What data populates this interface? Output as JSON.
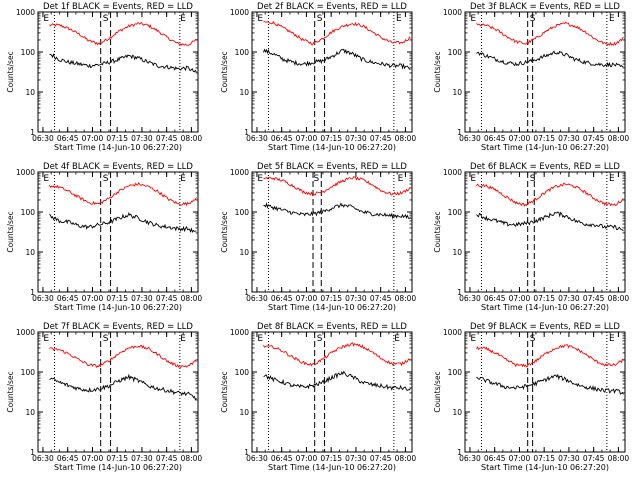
{
  "figure": {
    "tick_labels_x": [
      "06:30",
      "06:45",
      "07:00",
      "07:15",
      "07:30",
      "07:45",
      "08:00"
    ],
    "tick_labels_y": [
      "1",
      "10",
      "100",
      "1000"
    ]
  },
  "chart_data": [
    {
      "type": "line",
      "title": "Det 1f BLACK = Events, RED = LLD",
      "xlabel": "Start Time (14-Jun-10 06:27:20)",
      "ylabel": "Counts/sec",
      "xlim": [
        "06:27",
        "08:04"
      ],
      "ylim": [
        1,
        1000
      ],
      "yscale": "log",
      "annotations": [
        {
          "text": "E",
          "x": "06:32"
        },
        {
          "text": "S",
          "x": "07:08"
        },
        {
          "text": "E",
          "x": "07:55"
        }
      ],
      "dashed_lines": [
        "07:05",
        "07:11"
      ],
      "dotted_lines": [
        "06:37",
        "07:53"
      ],
      "series": [
        {
          "color": "#ff0000",
          "x": [
            "06:34",
            "06:40",
            "06:46",
            "06:52",
            "06:58",
            "07:04",
            "07:10",
            "07:16",
            "07:22",
            "07:28",
            "07:34",
            "07:40",
            "07:46",
            "07:52",
            "07:58",
            "08:03"
          ],
          "values": [
            470,
            470,
            380,
            280,
            190,
            160,
            220,
            330,
            440,
            520,
            460,
            330,
            220,
            160,
            150,
            200
          ]
        },
        {
          "color": "#000000",
          "x": [
            "06:34",
            "06:40",
            "06:46",
            "06:52",
            "06:58",
            "07:04",
            "07:10",
            "07:16",
            "07:22",
            "07:28",
            "07:34",
            "07:40",
            "07:46",
            "07:52",
            "07:58",
            "08:03"
          ],
          "values": [
            90,
            65,
            55,
            50,
            45,
            48,
            55,
            65,
            80,
            70,
            55,
            45,
            42,
            38,
            40,
            30
          ]
        }
      ]
    },
    {
      "type": "line",
      "title": "Det 2f BLACK = Events, RED = LLD",
      "xlabel": "Start Time (14-Jun-10 06:27:20)",
      "ylabel": "Counts/sec",
      "xlim": [
        "06:27",
        "08:04"
      ],
      "ylim": [
        1,
        1000
      ],
      "yscale": "log",
      "annotations": [
        {
          "text": "E",
          "x": "06:32"
        },
        {
          "text": "S",
          "x": "07:08"
        },
        {
          "text": "E",
          "x": "07:56"
        }
      ],
      "dashed_lines": [
        "07:05",
        "07:11"
      ],
      "dotted_lines": [
        "06:37",
        "07:53"
      ],
      "series": [
        {
          "color": "#ff0000",
          "x": [
            "06:34",
            "06:40",
            "06:46",
            "06:52",
            "06:58",
            "07:04",
            "07:10",
            "07:16",
            "07:22",
            "07:28",
            "07:34",
            "07:40",
            "07:46",
            "07:52",
            "07:58",
            "08:03"
          ],
          "values": [
            560,
            540,
            400,
            290,
            200,
            160,
            220,
            330,
            440,
            520,
            450,
            320,
            220,
            170,
            170,
            230
          ]
        },
        {
          "color": "#000000",
          "x": [
            "06:34",
            "06:40",
            "06:46",
            "06:52",
            "06:58",
            "07:04",
            "07:10",
            "07:16",
            "07:22",
            "07:28",
            "07:34",
            "07:40",
            "07:46",
            "07:52",
            "07:58",
            "08:03"
          ],
          "values": [
            110,
            90,
            65,
            55,
            50,
            55,
            60,
            80,
            110,
            90,
            65,
            55,
            50,
            45,
            45,
            38
          ]
        }
      ]
    },
    {
      "type": "line",
      "title": "Det 3f BLACK = Events, RED = LLD",
      "xlabel": "Start Time (14-Jun-10 06:27:20)",
      "ylabel": "Counts/sec",
      "xlim": [
        "06:27",
        "08:04"
      ],
      "ylim": [
        1,
        1000
      ],
      "yscale": "log",
      "annotations": [
        {
          "text": "E",
          "x": "06:32"
        },
        {
          "text": "S",
          "x": "07:08"
        },
        {
          "text": "E",
          "x": "07:56"
        }
      ],
      "dashed_lines": [
        "07:05",
        "07:08"
      ],
      "dotted_lines": [
        "06:37",
        "07:53"
      ],
      "series": [
        {
          "color": "#ff0000",
          "x": [
            "06:34",
            "06:40",
            "06:46",
            "06:52",
            "06:58",
            "07:04",
            "07:10",
            "07:16",
            "07:22",
            "07:28",
            "07:34",
            "07:40",
            "07:46",
            "07:52",
            "07:58",
            "08:03"
          ],
          "values": [
            480,
            460,
            360,
            250,
            180,
            160,
            220,
            330,
            450,
            520,
            440,
            320,
            210,
            160,
            160,
            220
          ]
        },
        {
          "color": "#000000",
          "x": [
            "06:34",
            "06:40",
            "06:46",
            "06:52",
            "06:58",
            "07:04",
            "07:10",
            "07:16",
            "07:22",
            "07:28",
            "07:34",
            "07:40",
            "07:46",
            "07:52",
            "07:58",
            "08:03"
          ],
          "values": [
            100,
            80,
            65,
            55,
            50,
            55,
            65,
            80,
            100,
            85,
            65,
            55,
            50,
            48,
            48,
            40
          ]
        }
      ]
    },
    {
      "type": "line",
      "title": "Det 4f BLACK = Events, RED = LLD",
      "xlabel": "Start Time (14-Jun-10 06:27:20)",
      "ylabel": "Counts/sec",
      "xlim": [
        "06:27",
        "08:04"
      ],
      "ylim": [
        1,
        1000
      ],
      "yscale": "log",
      "annotations": [
        {
          "text": "E",
          "x": "06:32"
        },
        {
          "text": "S",
          "x": "07:08"
        },
        {
          "text": "E",
          "x": "07:55"
        }
      ],
      "dashed_lines": [
        "07:05",
        "07:11"
      ],
      "dotted_lines": [
        "06:37",
        "07:53"
      ],
      "series": [
        {
          "color": "#ff0000",
          "x": [
            "06:34",
            "06:40",
            "06:46",
            "06:52",
            "06:58",
            "07:04",
            "07:10",
            "07:16",
            "07:22",
            "07:28",
            "07:34",
            "07:40",
            "07:46",
            "07:52",
            "07:58",
            "08:03"
          ],
          "values": [
            450,
            420,
            320,
            230,
            170,
            160,
            220,
            330,
            450,
            500,
            430,
            320,
            210,
            160,
            160,
            230
          ]
        },
        {
          "color": "#000000",
          "x": [
            "06:34",
            "06:40",
            "06:46",
            "06:52",
            "06:58",
            "07:04",
            "07:10",
            "07:16",
            "07:22",
            "07:28",
            "07:34",
            "07:40",
            "07:46",
            "07:52",
            "07:58",
            "08:03"
          ],
          "values": [
            80,
            60,
            55,
            45,
            42,
            48,
            55,
            70,
            85,
            70,
            55,
            45,
            42,
            38,
            38,
            30
          ]
        }
      ]
    },
    {
      "type": "line",
      "title": "Det 5f BLACK = Events, RED = LLD",
      "xlabel": "Start Time (14-Jun-10 06:27:20)",
      "ylabel": "Counts/sec",
      "xlim": [
        "06:27",
        "08:04"
      ],
      "ylim": [
        1,
        1000
      ],
      "yscale": "log",
      "annotations": [
        {
          "text": "E",
          "x": "06:32"
        },
        {
          "text": "S",
          "x": "07:06"
        },
        {
          "text": "E",
          "x": "07:57"
        }
      ],
      "dashed_lines": [
        "07:04",
        "07:09"
      ],
      "dotted_lines": [
        "06:37",
        "07:53"
      ],
      "series": [
        {
          "color": "#ff0000",
          "x": [
            "06:34",
            "06:40",
            "06:46",
            "06:52",
            "06:58",
            "07:04",
            "07:10",
            "07:16",
            "07:22",
            "07:28",
            "07:34",
            "07:40",
            "07:46",
            "07:52",
            "07:58",
            "08:03"
          ],
          "values": [
            700,
            700,
            600,
            450,
            320,
            280,
            320,
            450,
            600,
            720,
            640,
            480,
            330,
            280,
            300,
            400
          ]
        },
        {
          "color": "#000000",
          "x": [
            "06:34",
            "06:40",
            "06:46",
            "06:52",
            "06:58",
            "07:04",
            "07:10",
            "07:16",
            "07:22",
            "07:28",
            "07:34",
            "07:40",
            "07:46",
            "07:52",
            "07:58",
            "08:03"
          ],
          "values": [
            150,
            130,
            110,
            95,
            85,
            90,
            100,
            130,
            150,
            130,
            100,
            90,
            85,
            80,
            80,
            70
          ]
        }
      ]
    },
    {
      "type": "line",
      "title": "Det 6f BLACK = Events, RED = LLD",
      "xlabel": "Start Time (14-Jun-10 06:27:20)",
      "ylabel": "Counts/sec",
      "xlim": [
        "06:27",
        "08:04"
      ],
      "ylim": [
        1,
        1000
      ],
      "yscale": "log",
      "annotations": [
        {
          "text": "E",
          "x": "06:32"
        },
        {
          "text": "S",
          "x": "07:08"
        },
        {
          "text": "E",
          "x": "07:56"
        }
      ],
      "dashed_lines": [
        "07:05",
        "07:09"
      ],
      "dotted_lines": [
        "06:37",
        "07:53"
      ],
      "series": [
        {
          "color": "#ff0000",
          "x": [
            "06:34",
            "06:40",
            "06:46",
            "06:52",
            "06:58",
            "07:04",
            "07:10",
            "07:16",
            "07:22",
            "07:28",
            "07:34",
            "07:40",
            "07:46",
            "07:52",
            "07:58",
            "08:03"
          ],
          "values": [
            470,
            450,
            350,
            240,
            170,
            150,
            210,
            320,
            430,
            500,
            430,
            310,
            210,
            160,
            150,
            210
          ]
        },
        {
          "color": "#000000",
          "x": [
            "06:34",
            "06:40",
            "06:46",
            "06:52",
            "06:58",
            "07:04",
            "07:10",
            "07:16",
            "07:22",
            "07:28",
            "07:34",
            "07:40",
            "07:46",
            "07:52",
            "07:58",
            "08:03"
          ],
          "values": [
            90,
            70,
            60,
            50,
            48,
            52,
            60,
            75,
            95,
            80,
            60,
            50,
            48,
            42,
            42,
            35
          ]
        }
      ]
    },
    {
      "type": "line",
      "title": "Det 7f BLACK = Events, RED = LLD",
      "xlabel": "Start Time (14-Jun-10 06:27:20)",
      "ylabel": "Counts/sec",
      "xlim": [
        "06:27",
        "08:04"
      ],
      "ylim": [
        1,
        1000
      ],
      "yscale": "log",
      "annotations": [
        {
          "text": "E",
          "x": "06:32"
        },
        {
          "text": "S",
          "x": "07:08"
        },
        {
          "text": "E",
          "x": "07:55"
        }
      ],
      "dashed_lines": [
        "07:05",
        "07:11"
      ],
      "dotted_lines": [
        "06:37",
        "07:53"
      ],
      "series": [
        {
          "color": "#ff0000",
          "x": [
            "06:34",
            "06:40",
            "06:46",
            "06:52",
            "06:58",
            "07:04",
            "07:10",
            "07:16",
            "07:22",
            "07:28",
            "07:34",
            "07:40",
            "07:46",
            "07:52",
            "07:58",
            "08:03"
          ],
          "values": [
            380,
            360,
            280,
            200,
            150,
            140,
            190,
            290,
            400,
            450,
            380,
            270,
            180,
            140,
            140,
            190
          ]
        },
        {
          "color": "#000000",
          "x": [
            "06:34",
            "06:40",
            "06:46",
            "06:52",
            "06:58",
            "07:04",
            "07:10",
            "07:16",
            "07:22",
            "07:28",
            "07:34",
            "07:40",
            "07:46",
            "07:52",
            "07:58",
            "08:03"
          ],
          "values": [
            70,
            55,
            45,
            38,
            35,
            38,
            45,
            60,
            75,
            60,
            45,
            38,
            34,
            30,
            28,
            22
          ]
        }
      ]
    },
    {
      "type": "line",
      "title": "Det 8f BLACK = Events, RED = LLD",
      "xlabel": "Start Time (14-Jun-10 06:27:20)",
      "ylabel": "Counts/sec",
      "xlim": [
        "06:27",
        "08:04"
      ],
      "ylim": [
        1,
        1000
      ],
      "yscale": "log",
      "annotations": [
        {
          "text": "E",
          "x": "06:32"
        },
        {
          "text": "S",
          "x": "07:08"
        },
        {
          "text": "E",
          "x": "07:55"
        }
      ],
      "dashed_lines": [
        "07:05",
        "07:11"
      ],
      "dotted_lines": [
        "06:37",
        "07:53"
      ],
      "series": [
        {
          "color": "#ff0000",
          "x": [
            "06:34",
            "06:40",
            "06:46",
            "06:52",
            "06:58",
            "07:04",
            "07:10",
            "07:16",
            "07:22",
            "07:28",
            "07:34",
            "07:40",
            "07:46",
            "07:52",
            "07:58",
            "08:03"
          ],
          "values": [
            440,
            420,
            330,
            230,
            170,
            150,
            210,
            320,
            430,
            500,
            430,
            310,
            210,
            160,
            160,
            220
          ]
        },
        {
          "color": "#000000",
          "x": [
            "06:34",
            "06:40",
            "06:46",
            "06:52",
            "06:58",
            "07:04",
            "07:10",
            "07:16",
            "07:22",
            "07:28",
            "07:34",
            "07:40",
            "07:46",
            "07:52",
            "07:58",
            "08:03"
          ],
          "values": [
            85,
            65,
            55,
            45,
            42,
            46,
            55,
            75,
            95,
            75,
            55,
            48,
            44,
            40,
            40,
            35
          ]
        }
      ]
    },
    {
      "type": "line",
      "title": "Det 9f BLACK = Events, RED = LLD",
      "xlabel": "Start Time (14-Jun-10 06:27:20)",
      "ylabel": "Counts/sec",
      "xlim": [
        "06:27",
        "08:04"
      ],
      "ylim": [
        1,
        1000
      ],
      "yscale": "log",
      "annotations": [
        {
          "text": "E",
          "x": "06:32"
        },
        {
          "text": "S",
          "x": "07:08"
        },
        {
          "text": "E",
          "x": "07:56"
        }
      ],
      "dashed_lines": [
        "07:05",
        "07:08"
      ],
      "dotted_lines": [
        "06:37",
        "07:53"
      ],
      "series": [
        {
          "color": "#ff0000",
          "x": [
            "06:34",
            "06:40",
            "06:46",
            "06:52",
            "06:58",
            "07:04",
            "07:10",
            "07:16",
            "07:22",
            "07:28",
            "07:34",
            "07:40",
            "07:46",
            "07:52",
            "07:58",
            "08:03"
          ],
          "values": [
            400,
            380,
            290,
            200,
            150,
            140,
            190,
            290,
            400,
            460,
            390,
            280,
            190,
            150,
            150,
            200
          ]
        },
        {
          "color": "#000000",
          "x": [
            "06:34",
            "06:40",
            "06:46",
            "06:52",
            "06:58",
            "07:04",
            "07:10",
            "07:16",
            "07:22",
            "07:28",
            "07:34",
            "07:40",
            "07:46",
            "07:52",
            "07:58",
            "08:03"
          ],
          "values": [
            75,
            60,
            50,
            42,
            40,
            44,
            52,
            65,
            80,
            65,
            50,
            42,
            38,
            34,
            34,
            30
          ]
        }
      ]
    }
  ]
}
